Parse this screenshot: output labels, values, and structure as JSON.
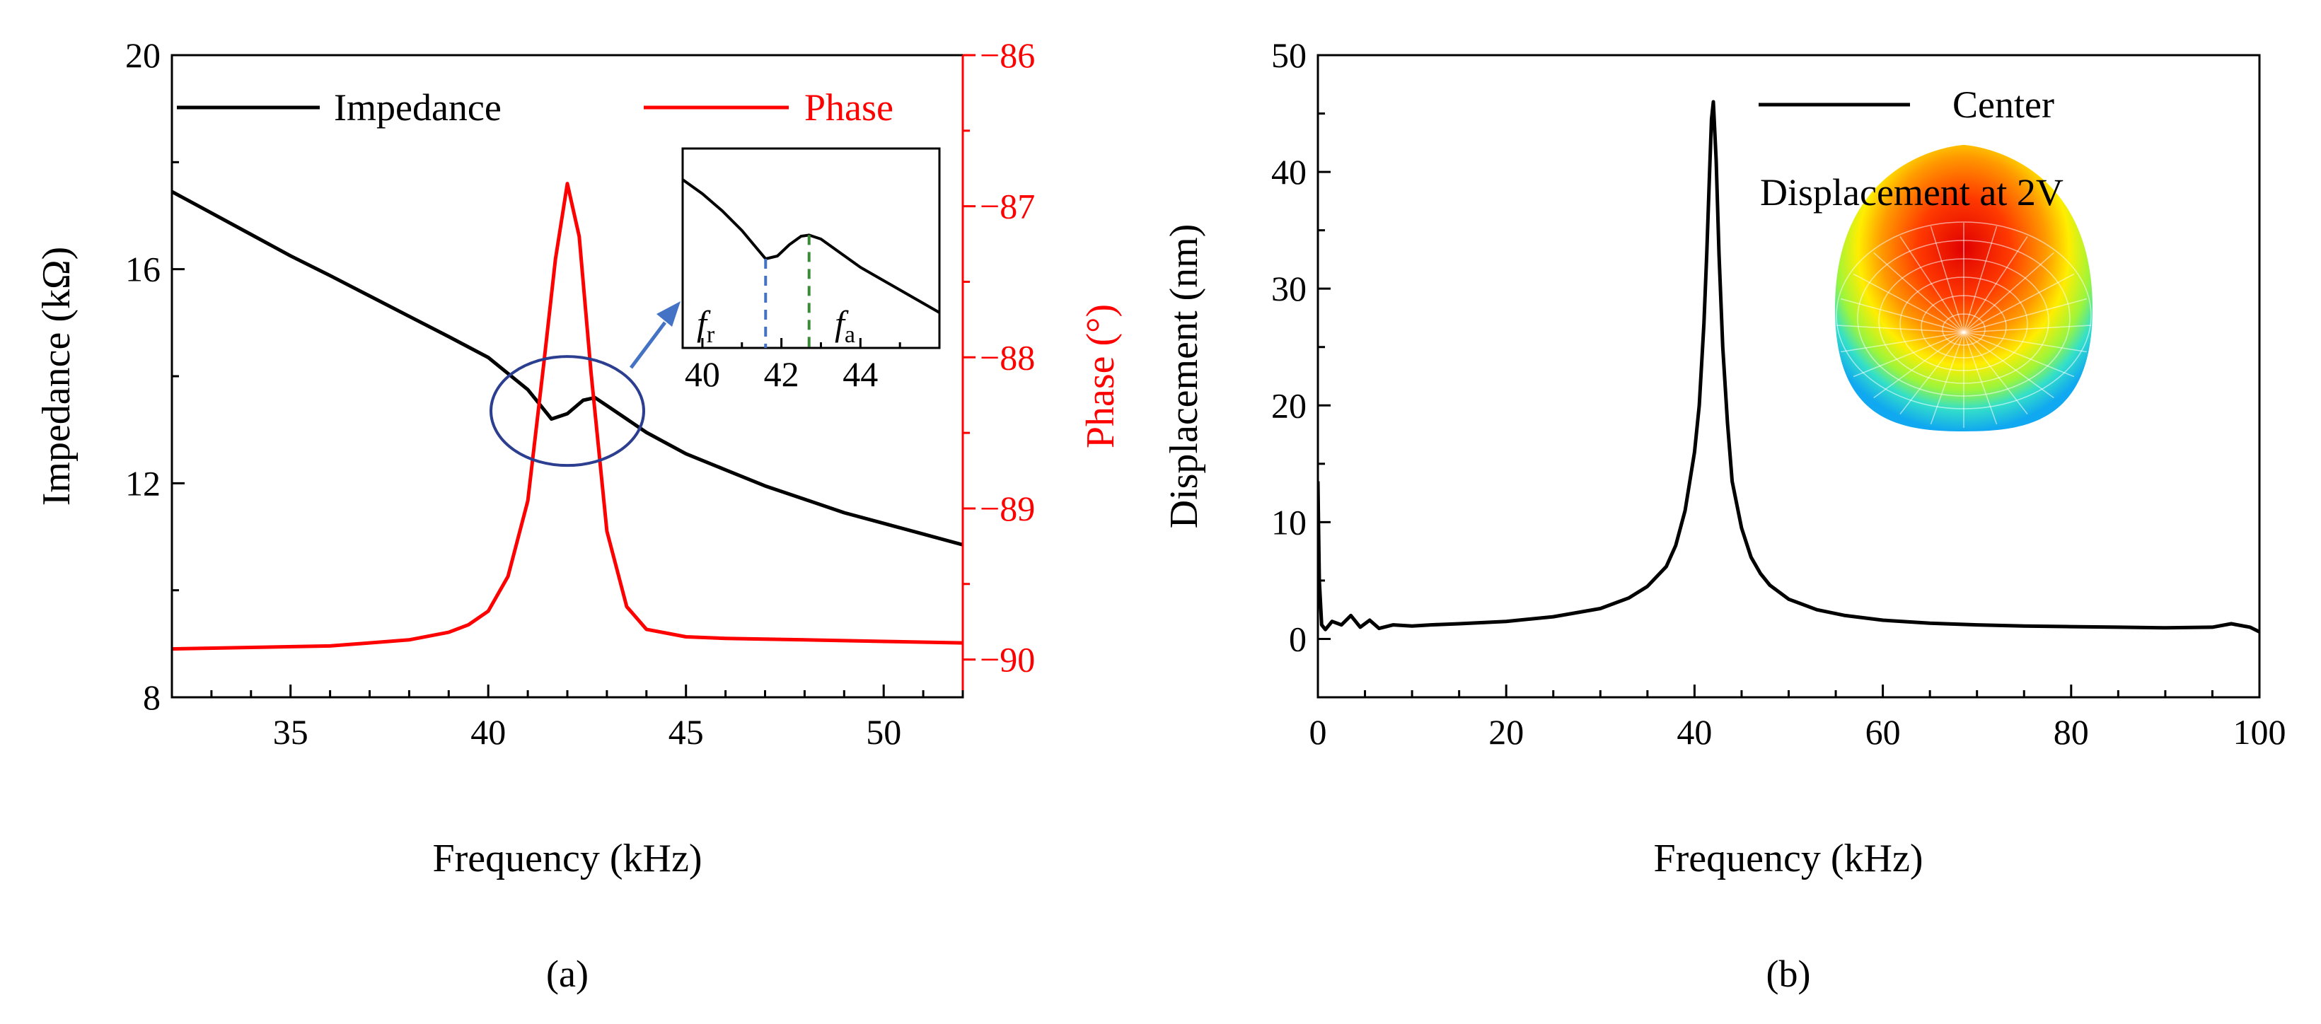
{
  "colors": {
    "impedance": "#000000",
    "phase": "#ff0000",
    "annotation": "#2c3e8f",
    "arrow": "#4472c4",
    "fr_marker": "#4472c4",
    "fa_marker": "#3a8a3a",
    "displacement": "#000000"
  },
  "chart_data": [
    {
      "panel": "(a)",
      "type": "line",
      "xlabel": "Frequency (kHz)",
      "ylabel": "Impedance (kΩ)",
      "y2label": "Phase (°)",
      "xlim": [
        32,
        52
      ],
      "ylim": [
        8,
        20
      ],
      "y2lim": [
        -90.25,
        -86
      ],
      "xticks": [
        "35",
        "40",
        "45",
        "50"
      ],
      "yticks": [
        "8",
        "12",
        "16",
        "20"
      ],
      "y2ticks": [
        "-90",
        "-89",
        "-88",
        "-87",
        "-86"
      ],
      "legend": {
        "impedance": "Impedance",
        "phase": "Phase",
        "position": "top"
      },
      "series": [
        {
          "name": "Impedance",
          "axis": "left",
          "x": [
            32,
            33,
            34,
            35,
            36,
            37,
            38,
            39,
            40,
            41,
            41.6,
            42,
            42.4,
            42.7,
            43,
            43.5,
            44,
            45,
            46,
            47,
            48,
            49,
            50,
            51,
            52
          ],
          "values": [
            17.45,
            17.05,
            16.65,
            16.25,
            15.88,
            15.5,
            15.12,
            14.74,
            14.35,
            13.75,
            13.2,
            13.3,
            13.55,
            13.6,
            13.45,
            13.2,
            12.95,
            12.55,
            12.25,
            11.95,
            11.7,
            11.45,
            11.25,
            11.05,
            10.85
          ]
        },
        {
          "name": "Phase",
          "axis": "right",
          "x": [
            32,
            34,
            36,
            38,
            39,
            39.5,
            40,
            40.5,
            41,
            41.4,
            41.7,
            42,
            42.3,
            42.6,
            43,
            43.5,
            44,
            45,
            46,
            48,
            50,
            52
          ],
          "values": [
            -89.93,
            -89.92,
            -89.91,
            -89.87,
            -89.82,
            -89.77,
            -89.68,
            -89.45,
            -88.95,
            -88.05,
            -87.35,
            -86.85,
            -87.2,
            -88.1,
            -89.15,
            -89.65,
            -89.8,
            -89.85,
            -89.86,
            -89.87,
            -89.88,
            -89.89
          ]
        }
      ],
      "annotations": {
        "circle_center_x": 42,
        "circle_center_y": 13.35
      },
      "inset": {
        "xlim": [
          39.5,
          46
        ],
        "xticks": [
          "40",
          "42",
          "44"
        ],
        "fr_label": "f",
        "fr_sub": "r",
        "fa_label": "f",
        "fa_sub": "a",
        "fr_x": 41.6,
        "fa_x": 42.7,
        "x": [
          39.5,
          40,
          40.5,
          41,
          41.3,
          41.6,
          41.9,
          42.2,
          42.5,
          42.7,
          43,
          43.5,
          44,
          44.5,
          45,
          45.5,
          46
        ],
        "values": [
          14.6,
          14.35,
          14.05,
          13.7,
          13.45,
          13.2,
          13.25,
          13.45,
          13.6,
          13.62,
          13.55,
          13.3,
          13.05,
          12.85,
          12.65,
          12.45,
          12.25
        ]
      }
    },
    {
      "panel": "(b)",
      "type": "line",
      "xlabel": "Frequency (kHz)",
      "ylabel": "Displacement (nm)",
      "xlim": [
        0,
        100
      ],
      "ylim": [
        -5,
        50
      ],
      "xticks": [
        "0",
        "20",
        "40",
        "60",
        "80",
        "100"
      ],
      "yticks": [
        "0",
        "10",
        "20",
        "30",
        "40",
        "50"
      ],
      "legend": {
        "center": "Center",
        "position": "top-right"
      },
      "annotation_text": "Displacement at 2V",
      "series": [
        {
          "name": "Center",
          "x": [
            0,
            0.15,
            0.4,
            0.8,
            1.5,
            2.5,
            3.5,
            4.5,
            5.5,
            6.5,
            8,
            10,
            12,
            15,
            20,
            25,
            30,
            33,
            35,
            37,
            38,
            39,
            40,
            40.5,
            41,
            41.3,
            41.6,
            41.8,
            42,
            42.3,
            42.6,
            43,
            43.5,
            44,
            45,
            46,
            47,
            48,
            50,
            53,
            56,
            60,
            65,
            70,
            75,
            80,
            85,
            90,
            95,
            97,
            99,
            100
          ],
          "values": [
            13.5,
            5,
            1.2,
            0.8,
            1.5,
            1.2,
            2.0,
            1.0,
            1.6,
            0.9,
            1.2,
            1.1,
            1.2,
            1.3,
            1.5,
            1.9,
            2.6,
            3.5,
            4.5,
            6.2,
            8.0,
            11,
            16,
            20,
            27,
            33,
            40,
            44.5,
            46,
            41,
            33,
            25,
            18.5,
            13.5,
            9.5,
            7,
            5.6,
            4.6,
            3.4,
            2.5,
            2.0,
            1.6,
            1.35,
            1.2,
            1.1,
            1.05,
            1.0,
            0.95,
            1.0,
            1.3,
            1.0,
            0.6
          ]
        }
      ]
    }
  ],
  "labels": {
    "panel_a": "(a)",
    "panel_b": "(b)"
  }
}
